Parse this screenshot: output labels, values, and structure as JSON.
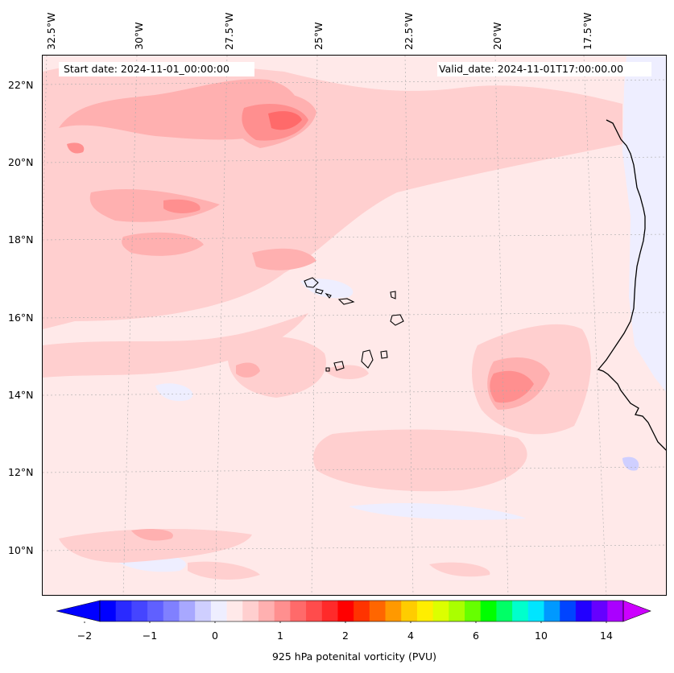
{
  "map": {
    "start_date": "Start date: 2024-11-01_00:00:00",
    "valid_date": "Valid_date: 2024-11-01T17:00:00.00",
    "longitude_labels": [
      "32.5°W",
      "30°W",
      "27.5°W",
      "25°W",
      "22.5°W",
      "20°W",
      "17.5°W"
    ],
    "latitude_labels": [
      "22°N",
      "20°N",
      "18°N",
      "16°N",
      "14°N",
      "12°N",
      "10°N"
    ]
  },
  "colorbar": {
    "label": "925 hPa potenital vorticity (PVU)",
    "tick_labels": [
      "−2",
      "−1",
      "0",
      "1",
      "2",
      "4",
      "6",
      "10",
      "14"
    ],
    "colors": [
      "#0000ff",
      "#2a2aff",
      "#4545ff",
      "#6060ff",
      "#8080ff",
      "#a8a8ff",
      "#cfcfff",
      "#eeeeff",
      "#ffe9e9",
      "#ffcfcf",
      "#ffb0b0",
      "#ff8f8f",
      "#ff6a6a",
      "#ff4c4c",
      "#ff2a2a",
      "#ff0000",
      "#ff3300",
      "#ff6600",
      "#ff9900",
      "#ffcc00",
      "#ffee00",
      "#dcff00",
      "#aaff00",
      "#66ff00",
      "#00ff00",
      "#00ff66",
      "#00ffcc",
      "#00e5ff",
      "#0099ff",
      "#0044ff",
      "#2200ff",
      "#6600ff",
      "#aa00ff"
    ],
    "min_arrow_color": "#0000ff",
    "max_arrow_color": "#cc00ff"
  }
}
